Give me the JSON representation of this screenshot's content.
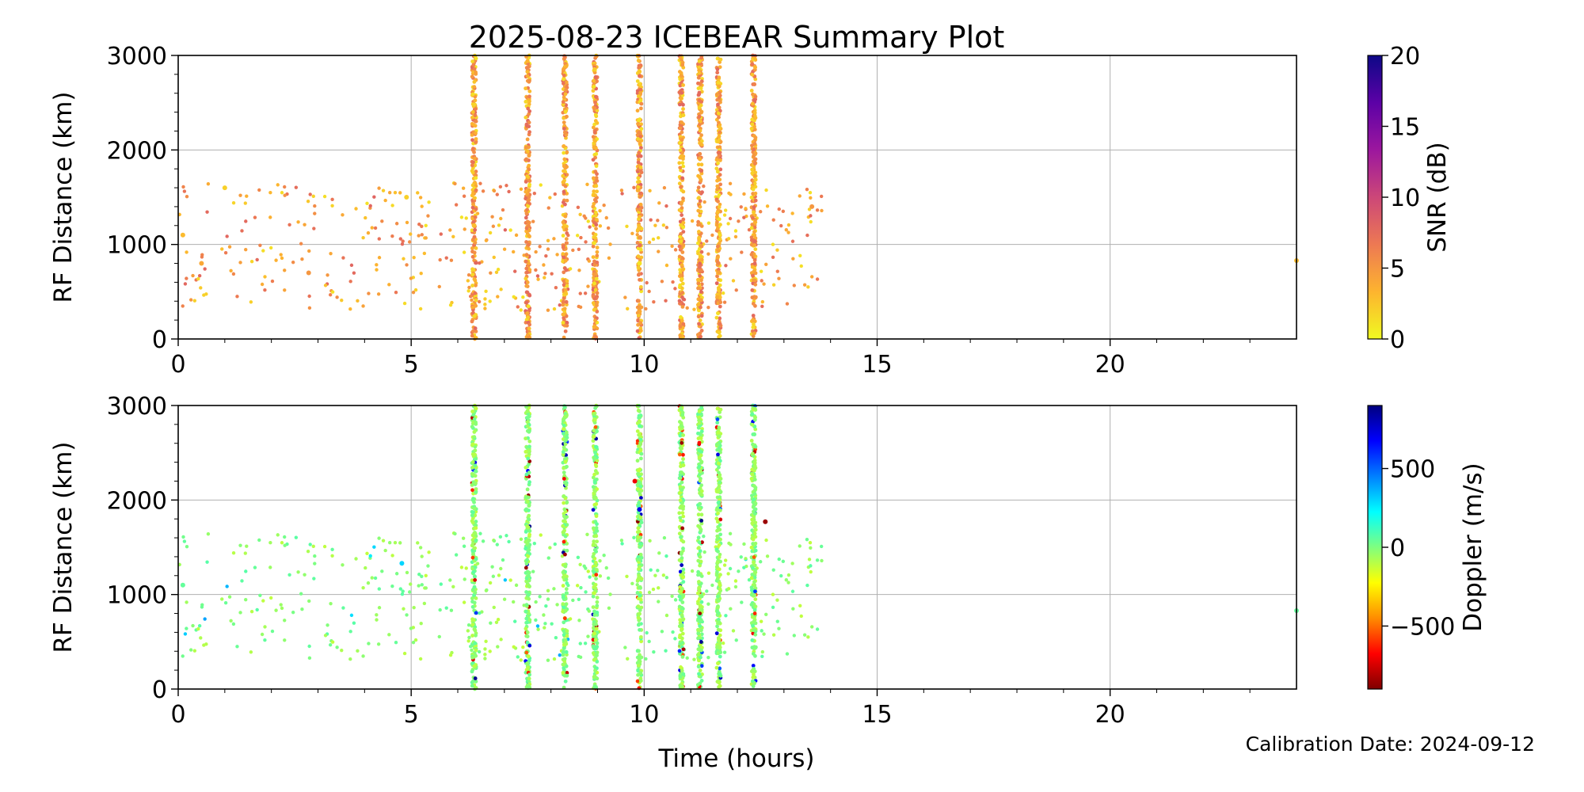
{
  "figure": {
    "title": "2025-08-23 ICEBEAR Summary Plot",
    "footer_note": "Calibration Date: 2024-09-12"
  },
  "chart_data": [
    {
      "type": "scatter",
      "panel": "top",
      "ylabel": "RF Distance (km)",
      "xlabel": "",
      "xlim": [
        0,
        24
      ],
      "ylim": [
        0,
        3000
      ],
      "x_ticks": [
        "0",
        "5",
        "10",
        "15",
        "20"
      ],
      "y_ticks": [
        "0",
        "1000",
        "2000",
        "3000"
      ],
      "grid": true,
      "colorbar": {
        "label": "SNR (dB)",
        "range": [
          0,
          20
        ],
        "ticks": [
          "0",
          "5",
          "10",
          "15",
          "20"
        ],
        "colormap": [
          "#f0f921",
          "#fdb42f",
          "#ed7953",
          "#cc4778",
          "#9c179e",
          "#5c01a6",
          "#0d0887"
        ]
      },
      "vertical_streaks_hours": [
        6.35,
        7.5,
        8.3,
        8.95,
        9.9,
        10.8,
        11.2,
        11.6,
        12.35
      ],
      "sample_points": [
        {
          "x": 0.1,
          "y": 1100,
          "snr": 3
        },
        {
          "x": 0.5,
          "y": 800,
          "snr": 4
        },
        {
          "x": 1.0,
          "y": 1600,
          "snr": 2
        },
        {
          "x": 2.8,
          "y": 700,
          "snr": 5
        },
        {
          "x": 4.9,
          "y": 1500,
          "snr": 2
        },
        {
          "x": 6.35,
          "y": 1200,
          "snr": 3
        },
        {
          "x": 9.9,
          "y": 800,
          "snr": 1
        },
        {
          "x": 13.6,
          "y": 1400,
          "snr": 5
        },
        {
          "x": 24.0,
          "y": 830,
          "snr": 3
        }
      ]
    },
    {
      "type": "scatter",
      "panel": "bottom",
      "ylabel": "RF Distance (km)",
      "xlabel": "Time (hours)",
      "xlim": [
        0,
        24
      ],
      "ylim": [
        0,
        3000
      ],
      "x_ticks": [
        "0",
        "5",
        "10",
        "15",
        "20"
      ],
      "y_ticks": [
        "0",
        "1000",
        "2000",
        "3000"
      ],
      "grid": true,
      "colorbar": {
        "label": "Doppler (m/s)",
        "range": [
          -900,
          900
        ],
        "ticks": [
          {
            "value": 500,
            "label": "500"
          },
          {
            "value": 0,
            "label": "0"
          },
          {
            "value": -500,
            "label": "−500"
          }
        ],
        "colormap": [
          "#7f0000",
          "#ff0000",
          "#ff8c00",
          "#ffff00",
          "#7fff7f",
          "#00ffff",
          "#0080ff",
          "#0000ff",
          "#00007f"
        ]
      },
      "vertical_streaks_hours": [
        6.35,
        7.5,
        8.3,
        8.95,
        9.9,
        10.8,
        11.2,
        11.6,
        12.35
      ],
      "sample_points": [
        {
          "x": 0.1,
          "y": 1100,
          "doppler": 50
        },
        {
          "x": 4.8,
          "y": 1330,
          "doppler": 300
        },
        {
          "x": 9.8,
          "y": 2200,
          "doppler": -700
        },
        {
          "x": 9.9,
          "y": 1900,
          "doppler": 700
        },
        {
          "x": 12.6,
          "y": 1770,
          "doppler": -850
        },
        {
          "x": 24.0,
          "y": 830,
          "doppler": 50
        }
      ]
    }
  ]
}
